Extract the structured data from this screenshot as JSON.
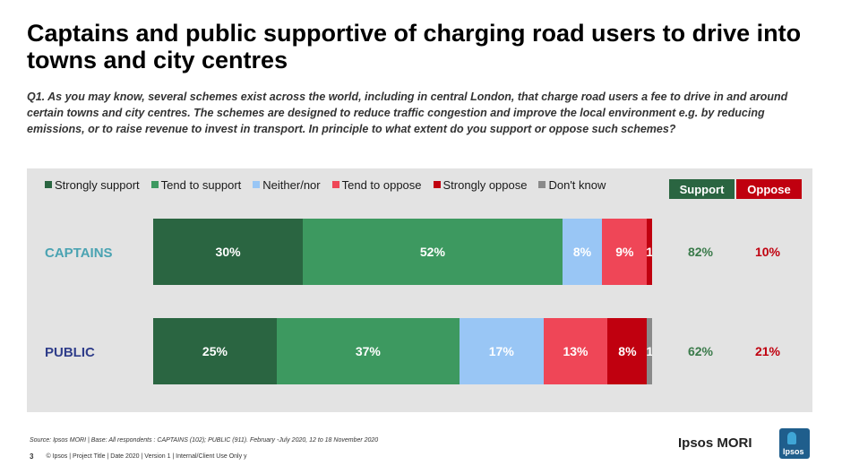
{
  "title": "Captains and public supportive of charging road users to drive into towns and city centres",
  "question": "Q1. As you may know, several schemes exist across the world, including in central London, that charge road users a fee to drive in and around certain towns and city centres. The schemes are designed to reduce traffic congestion and improve the local environment e.g. by reducing emissions, or to raise revenue to invest in transport. In principle to what extent do you support or oppose such schemes?",
  "colors": {
    "strongly_support": "#2a6541",
    "tend_to_support": "#3d9960",
    "neither_nor": "#99c6f5",
    "tend_to_oppose": "#ef4657",
    "strongly_oppose": "#c0000f",
    "dont_know": "#8a8a8a",
    "support_header": "#2a6541",
    "oppose_header": "#c0000f",
    "captains_label": "#4aa3b2",
    "public_label": "#2f3d8a",
    "support_value": "#3a7a4a",
    "oppose_value": "#c0000f"
  },
  "net_headers": {
    "support": "Support",
    "oppose": "Oppose"
  },
  "chart_data": {
    "type": "bar",
    "orientation": "horizontal",
    "stacked": true,
    "categories": [
      "CAPTAINS",
      "PUBLIC"
    ],
    "series": [
      {
        "name": "Strongly support",
        "values": [
          30,
          25
        ],
        "labels": [
          "30%",
          "25%"
        ]
      },
      {
        "name": "Tend to support",
        "values": [
          52,
          37
        ],
        "labels": [
          "52%",
          "37%"
        ]
      },
      {
        "name": "Neither/nor",
        "values": [
          8,
          17
        ],
        "labels": [
          "8%",
          "17%"
        ]
      },
      {
        "name": "Tend to oppose",
        "values": [
          9,
          13
        ],
        "labels": [
          "9%",
          "13%"
        ]
      },
      {
        "name": "Strongly oppose",
        "values": [
          1,
          8
        ],
        "labels": [
          "1",
          "8%"
        ]
      },
      {
        "name": "Don't know",
        "values": [
          0,
          1
        ],
        "labels": [
          "",
          "1"
        ]
      }
    ],
    "net": {
      "support": [
        "82%",
        "62%"
      ],
      "oppose": [
        "10%",
        "21%"
      ]
    },
    "legend_position": "top",
    "grid": false
  },
  "footer": {
    "source": "Source: Ipsos MORI | Base: All respondents : CAPTAINS (102); PUBLIC (911). February -July 2020, 12 to 18 November 2020",
    "page_number": "3",
    "meta": "© Ipsos | Project Title | Date 2020 | Version 1 | Internal/Client Use Only y",
    "brand": "Ipsos MORI",
    "logo_text": "Ipsos"
  }
}
